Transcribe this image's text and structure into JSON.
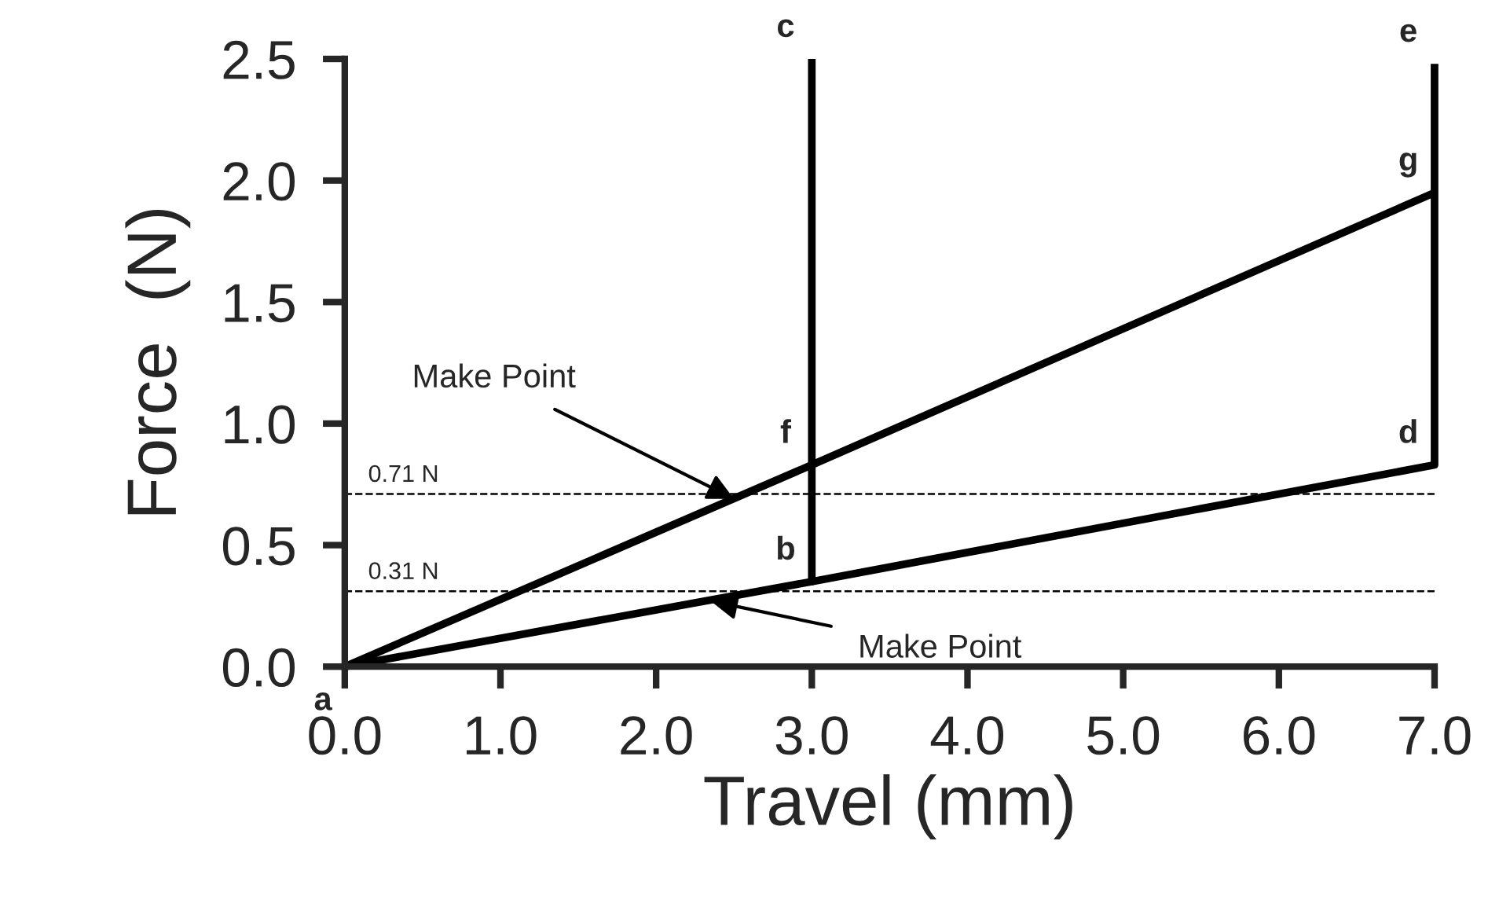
{
  "chart_data": {
    "type": "line",
    "xlabel": "Travel (mm)",
    "ylabel": "Force  (N)",
    "series": [
      {
        "color": "#000000",
        "x": [
          0,
          3,
          3
        ],
        "values": [
          0,
          0.35,
          2.5
        ]
      },
      {
        "color": "#000000",
        "x": [
          3,
          7,
          7
        ],
        "values": [
          0.35,
          0.83,
          2.48
        ]
      },
      {
        "color": "#000000",
        "x": [
          0,
          3,
          7
        ],
        "values": [
          0,
          0.83,
          1.95
        ]
      }
    ],
    "xlim": [
      0,
      7
    ],
    "ylim": [
      0,
      2.5
    ],
    "xticks": [
      {
        "value": 0,
        "label": "0.0"
      },
      {
        "value": 1,
        "label": "1.0"
      },
      {
        "value": 2,
        "label": "2.0"
      },
      {
        "value": 3,
        "label": "3.0"
      },
      {
        "value": 4,
        "label": "4.0"
      },
      {
        "value": 5,
        "label": "5.0"
      },
      {
        "value": 6,
        "label": "6.0"
      },
      {
        "value": 7,
        "label": "7.0"
      }
    ],
    "yticks": [
      {
        "value": 0,
        "label": "0.0"
      },
      {
        "value": 0.5,
        "label": "0.5"
      },
      {
        "value": 1,
        "label": "1.0"
      },
      {
        "value": 1.5,
        "label": "1.5"
      },
      {
        "value": 2,
        "label": "2.0"
      },
      {
        "value": 2.5,
        "label": "2.5"
      }
    ],
    "ref_lines": [
      {
        "axis": "y",
        "value": 0.71,
        "label": "0.71 N",
        "color": "#000000",
        "line_style": "dashed"
      },
      {
        "axis": "y",
        "value": 0.31,
        "label": "0.31 N",
        "color": "#000000",
        "line_style": "dashed"
      }
    ],
    "annotations": [
      {
        "text": "Make Point",
        "x": 2.5,
        "y": 0.69
      },
      {
        "text": "Make Point",
        "x": 2.35,
        "y": 0.27
      },
      {
        "text": "a",
        "x": 0,
        "y": 0
      },
      {
        "text": "b",
        "x": 3,
        "y": 0.35
      },
      {
        "text": "c",
        "x": 3,
        "y": 2.5
      },
      {
        "text": "d",
        "x": 7,
        "y": 0.83
      },
      {
        "text": "e",
        "x": 7,
        "y": 2.48
      },
      {
        "text": "f",
        "x": 3,
        "y": 0.83
      },
      {
        "text": "g",
        "x": 7,
        "y": 1.95
      }
    ],
    "grid": false,
    "legend": false,
    "marker": "none",
    "line_style": "solid"
  }
}
